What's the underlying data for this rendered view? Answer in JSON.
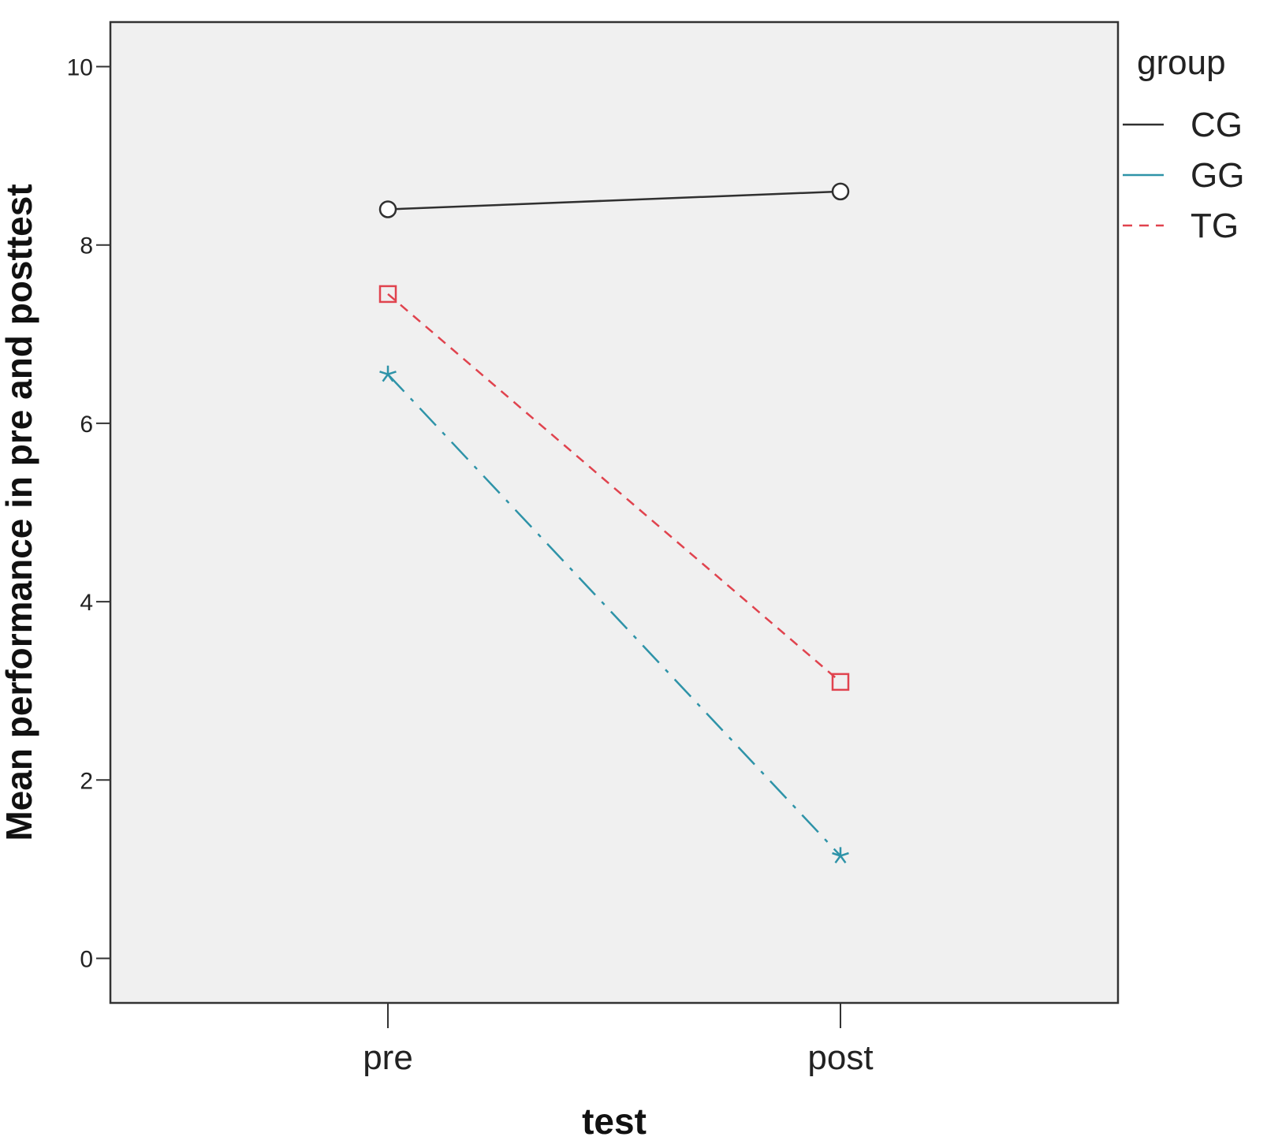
{
  "chart_data": {
    "type": "line",
    "xlabel": "test",
    "ylabel": "Mean performance in pre and posttest",
    "categories": [
      "pre",
      "post"
    ],
    "ylim": [
      -0.5,
      10.5
    ],
    "yticks": [
      0,
      2,
      4,
      6,
      8,
      10
    ],
    "grid": false,
    "legend": {
      "title": "group",
      "placement": "right"
    },
    "series": [
      {
        "name": "CG",
        "values": [
          8.4,
          8.6
        ],
        "color": "#303030",
        "dash": "solid",
        "marker": "circle"
      },
      {
        "name": "GG",
        "values": [
          6.55,
          1.15
        ],
        "color": "#2e93a8",
        "dash": "dashdot",
        "marker": "star"
      },
      {
        "name": "TG",
        "values": [
          7.45,
          3.1
        ],
        "color": "#e0434e",
        "dash": "dashed",
        "marker": "square"
      }
    ],
    "colors": {
      "plot_background": "#f0f0f0",
      "frame": "#333333"
    }
  }
}
